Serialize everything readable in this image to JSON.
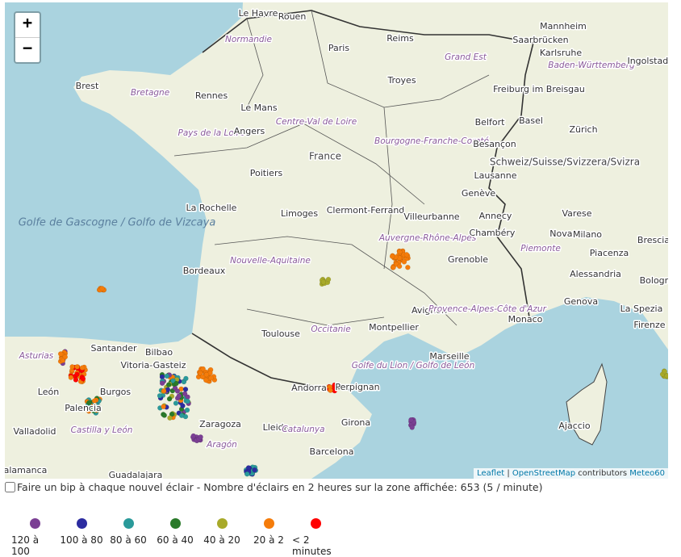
{
  "zoom": {
    "in": "+",
    "out": "−"
  },
  "places": [
    "Le Havre",
    "Rouen",
    "Reims",
    "Paris",
    "Saarbrücken",
    "Mannheim",
    "Karlsruhe",
    "Baden-Württemberg",
    "Ingolstadt",
    "Normandie",
    "Grand Est",
    "Brest",
    "Bretagne",
    "Rennes",
    "Le Mans",
    "Troyes",
    "Freiburg im Breisgau",
    "Centre-Val de Loire",
    "Pays de la Loire",
    "Angers",
    "Bourgogne-Franche-Comté",
    "Belfort",
    "Basel",
    "Zürich",
    "Besançon",
    "France",
    "Schweiz/Suisse/Svizzera/Svizra",
    "Lausanne",
    "Poitiers",
    "Genève",
    "Golfe de Gascogne / Golfo de Vizcaya",
    "La Rochelle",
    "Limoges",
    "Clermont-Ferrand",
    "Villeurbanne",
    "Annecy",
    "Varese",
    "Auvergne-Rhône-Alpes",
    "Chambéry",
    "Novara",
    "Milano",
    "Brescia",
    "Bordeaux",
    "Nouvelle-Aquitaine",
    "Grenoble",
    "Piemonte",
    "Piacenza",
    "Alessandria",
    "Bologna",
    "Genova",
    "Avignon",
    "Provence-Alpes-Côte d'Azur",
    "La Spezia",
    "Monaco",
    "Montpellier",
    "Toulouse",
    "Occitanie",
    "Firenze",
    "Santander",
    "Asturias",
    "Bilbao",
    "Marseille",
    "Golfe du Lion / Golfo de León",
    "Vitoria-Gasteiz",
    "Andorra",
    "Perpignan",
    "León",
    "Burgos",
    "Palencia",
    "Zaragoza",
    "Lleida",
    "Girona",
    "Catalunya",
    "Castilla y León",
    "Ajaccio",
    "Valladolid",
    "Aragón",
    "Barcelona",
    "Salamanca",
    "Guadalajara"
  ],
  "attribution": {
    "leaflet": "Leaflet",
    "osm": "OpenStreetMap",
    "contributors": "contributors",
    "meteo": "Meteo60"
  },
  "info": "Faire un bip à chaque nouvel éclair - Nombre d'éclairs en 2 heures sur la zone affichée: 653 (5 / minute)",
  "legend": [
    {
      "label": "120 à 100",
      "color": "#7b3f94"
    },
    {
      "label": "100 à 80",
      "color": "#2c2ca0"
    },
    {
      "label": "80 à 60",
      "color": "#2a9a9a"
    },
    {
      "label": "60 à 40",
      "color": "#2a7a2a"
    },
    {
      "label": "40 à 20",
      "color": "#a8aa2a"
    },
    {
      "label": "20 à 2",
      "color": "#f57c0a"
    },
    {
      "label": "< 2 minutes",
      "color": "#ff0000"
    }
  ]
}
